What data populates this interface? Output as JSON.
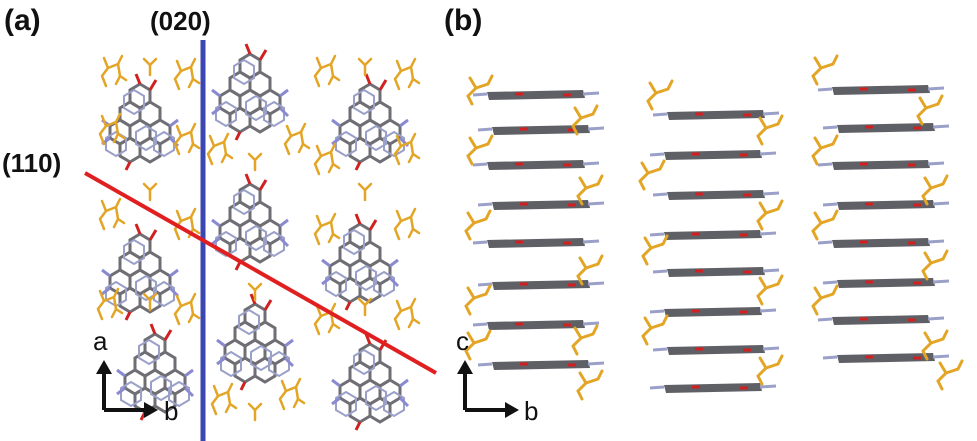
{
  "panel_a": {
    "label": "(a)",
    "plane_020_label": "(020)",
    "plane_110_label": "(110)",
    "axis_vertical": "a",
    "axis_horizontal": "b",
    "plane_020_color": "#3b46b0",
    "plane_110_color": "#e02020"
  },
  "panel_b": {
    "label": "(b)",
    "axis_vertical": "c",
    "axis_horizontal": "b"
  },
  "colors": {
    "molecule_core": "#6e6e74",
    "molecule_edge": "#9aa0c8",
    "oxygen": "#d02020",
    "nitrogen": "#8a8ad0",
    "side_chain": "#e3a526"
  }
}
